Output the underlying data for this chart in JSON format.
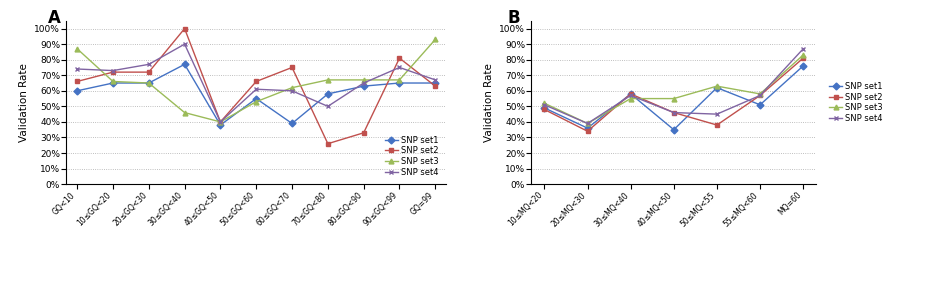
{
  "panel_A": {
    "title": "A",
    "xlabel_categories": [
      "GQ<10",
      "10≤GQ<20",
      "20≤GQ<30",
      "30≤GQ<40",
      "40≤GQ<50",
      "50≤GQ<60",
      "60≤GQ<70",
      "70≤GQ<80",
      "80≤GQ<90",
      "90≤GQ<99",
      "GQ=99"
    ],
    "series": {
      "SNP set1": [
        0.6,
        0.65,
        0.65,
        0.77,
        0.38,
        0.55,
        0.39,
        0.58,
        0.63,
        0.65,
        0.65
      ],
      "SNP set2": [
        0.66,
        0.72,
        0.72,
        1.0,
        0.4,
        0.66,
        0.75,
        0.26,
        0.33,
        0.81,
        0.63
      ],
      "SNP set3": [
        0.87,
        0.66,
        0.65,
        0.46,
        0.4,
        0.53,
        0.62,
        0.67,
        0.67,
        0.67,
        0.93
      ],
      "SNP set4": [
        0.74,
        0.73,
        0.77,
        0.9,
        0.4,
        0.61,
        0.6,
        0.5,
        0.65,
        0.75,
        0.67
      ]
    },
    "colors": {
      "SNP set1": "#4472C4",
      "SNP set2": "#C0504D",
      "SNP set3": "#9BBB59",
      "SNP set4": "#8064A2"
    },
    "markers": {
      "SNP set1": "D",
      "SNP set2": "s",
      "SNP set3": "^",
      "SNP set4": "x"
    },
    "ylabel": "Validation Rate",
    "ylim": [
      0,
      1.05
    ],
    "yticks": [
      0.0,
      0.1,
      0.2,
      0.3,
      0.4,
      0.5,
      0.6,
      0.7,
      0.8,
      0.9,
      1.0
    ]
  },
  "panel_B": {
    "title": "B",
    "xlabel_categories": [
      "10≤MQ<20",
      "20≤MQ<30",
      "30≤MQ<40",
      "40≤MQ<50",
      "50≤MQ<55",
      "55≤MQ<60",
      "MQ=60"
    ],
    "series": {
      "SNP set1": [
        0.49,
        0.36,
        0.58,
        0.35,
        0.62,
        0.51,
        0.76
      ],
      "SNP set2": [
        0.48,
        0.34,
        0.58,
        0.46,
        0.38,
        0.57,
        0.81
      ],
      "SNP set3": [
        0.52,
        0.39,
        0.55,
        0.55,
        0.63,
        0.58,
        0.83
      ],
      "SNP set4": [
        0.51,
        0.39,
        0.57,
        0.46,
        0.45,
        0.57,
        0.87
      ]
    },
    "colors": {
      "SNP set1": "#4472C4",
      "SNP set2": "#C0504D",
      "SNP set3": "#9BBB59",
      "SNP set4": "#8064A2"
    },
    "markers": {
      "SNP set1": "D",
      "SNP set2": "s",
      "SNP set3": "^",
      "SNP set4": "x"
    },
    "ylabel": "Validation Rate",
    "ylim": [
      0,
      1.05
    ],
    "yticks": [
      0.0,
      0.1,
      0.2,
      0.3,
      0.4,
      0.5,
      0.6,
      0.7,
      0.8,
      0.9,
      1.0
    ]
  },
  "figure_bg": "#ffffff",
  "axes_bg": "#ffffff"
}
